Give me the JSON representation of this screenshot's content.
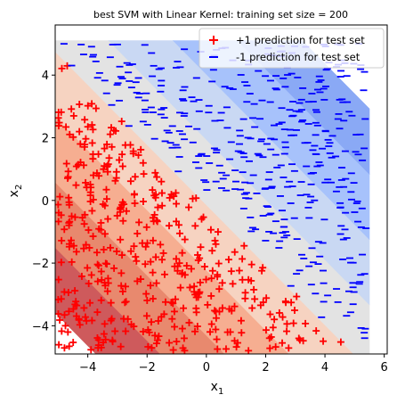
{
  "chart_data": {
    "type": "scatter",
    "title": "best SVM with Linear Kernel: training set size = 200",
    "xlabel_base": "x",
    "xlabel_sub": "1",
    "ylabel_base": "x",
    "ylabel_sub": "2",
    "xlim": [
      -5.1,
      6.1
    ],
    "ylim": [
      -4.9,
      5.6
    ],
    "xticks": [
      -4,
      -2,
      0,
      2,
      4,
      6
    ],
    "yticks": [
      -4,
      -2,
      0,
      2,
      4
    ],
    "xtick_labels": [
      "−4",
      "−2",
      "0",
      "2",
      "4",
      "6"
    ],
    "ytick_labels": [
      "−4",
      "−2",
      "0",
      "2",
      "4"
    ],
    "decision_function": {
      "x_range": [
        -5.1,
        5.5
      ],
      "y_range": [
        -4.9,
        5.1
      ],
      "levels": [
        -6,
        -4.5,
        -3,
        -1.5,
        0,
        1.5,
        3,
        4.5,
        6
      ],
      "weights": [
        0.69,
        0.72
      ],
      "bias": 0.1
    },
    "level_colors": [
      "#ce5a5c",
      "#e8896e",
      "#f6ae91",
      "#f6d3c1",
      "#e3e3e3",
      "#c9d8f3",
      "#a7c2fb",
      "#8aa9f5"
    ],
    "series": [
      {
        "name": "+1 prediction for test set",
        "marker": "+",
        "color": "#ff0000",
        "count": 420
      },
      {
        "name": "-1 prediction for test set",
        "marker": "_",
        "color": "#0000ff",
        "count": 420
      }
    ],
    "legend_position": "upper right",
    "grid": false
  }
}
